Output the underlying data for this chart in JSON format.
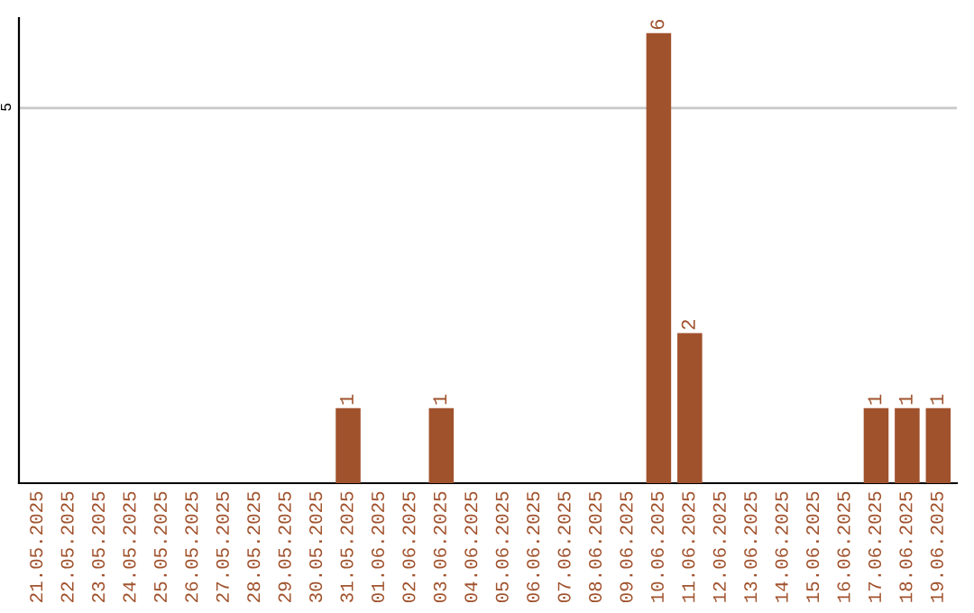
{
  "chart_data": {
    "type": "bar",
    "categories": [
      "21.05.2025",
      "22.05.2025",
      "23.05.2025",
      "24.05.2025",
      "25.05.2025",
      "26.05.2025",
      "27.05.2025",
      "28.05.2025",
      "29.05.2025",
      "30.05.2025",
      "31.05.2025",
      "01.06.2025",
      "02.06.2025",
      "03.06.2025",
      "04.06.2025",
      "05.06.2025",
      "06.06.2025",
      "07.06.2025",
      "08.06.2025",
      "09.06.2025",
      "10.06.2025",
      "11.06.2025",
      "12.06.2025",
      "13.06.2025",
      "14.06.2025",
      "15.06.2025",
      "16.06.2025",
      "17.06.2025",
      "18.06.2025",
      "19.06.2025"
    ],
    "values": [
      0,
      0,
      0,
      0,
      0,
      0,
      0,
      0,
      0,
      0,
      1,
      0,
      0,
      1,
      0,
      0,
      0,
      0,
      0,
      0,
      6,
      2,
      0,
      0,
      0,
      0,
      0,
      1,
      1,
      1
    ],
    "value_labels": [
      null,
      null,
      null,
      null,
      null,
      null,
      null,
      null,
      null,
      null,
      "1",
      null,
      null,
      "1",
      null,
      null,
      null,
      null,
      null,
      null,
      "6",
      "2",
      null,
      null,
      null,
      null,
      null,
      "1",
      "1",
      "1"
    ],
    "color": "#a0522d",
    "ylim": [
      0,
      6.2
    ],
    "yticks": [
      5
    ],
    "grid": "y"
  }
}
